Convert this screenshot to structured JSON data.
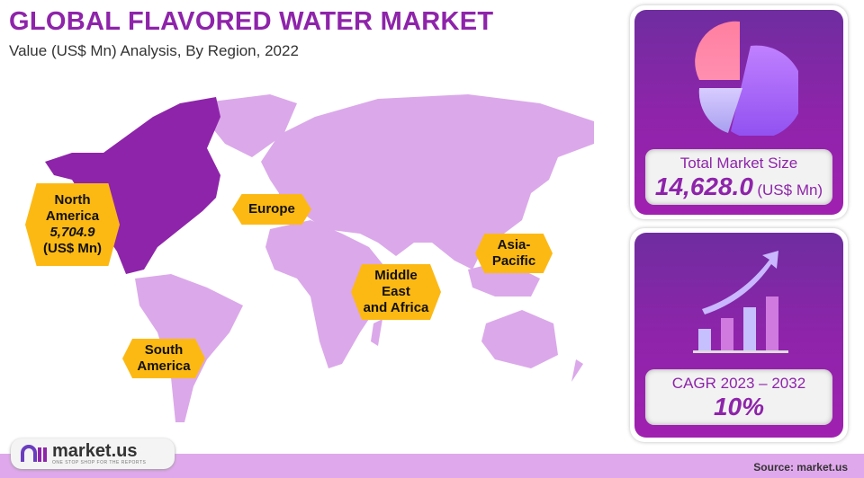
{
  "header": {
    "title": "GLOBAL FLAVORED WATER MARKET",
    "subtitle": "Value (US$ Mn) Analysis, By Region, 2022"
  },
  "regions": [
    {
      "name_line1": "North",
      "name_line2": "America",
      "value": "5,704.9",
      "unit": "(US$ Mn)",
      "highlighted": true
    },
    {
      "name_line1": "Europe"
    },
    {
      "name_line1": "Asia-",
      "name_line2": "Pacific"
    },
    {
      "name_line1": "Middle",
      "name_line2": "East",
      "name_line3": "and Africa"
    },
    {
      "name_line1": "South",
      "name_line2": "America"
    }
  ],
  "market_size": {
    "label": "Total Market Size",
    "value": "14,628.0",
    "unit": "(US$ Mn)",
    "icon": "pie-chart-icon"
  },
  "cagr": {
    "label": "CAGR 2023 – 2032",
    "value": "10%",
    "icon": "growth-bar-chart-icon"
  },
  "footer": {
    "source": "Source: market.us",
    "logo": "market.us",
    "logo_tagline": "ONE STOP SHOP FOR THE REPORTS"
  },
  "colors": {
    "accent": "#8e24aa",
    "map_land": "#dba8ea",
    "map_highlight": "#8e24aa",
    "label_bg": "#fdb913",
    "footer_bg": "#e0a8ec"
  }
}
